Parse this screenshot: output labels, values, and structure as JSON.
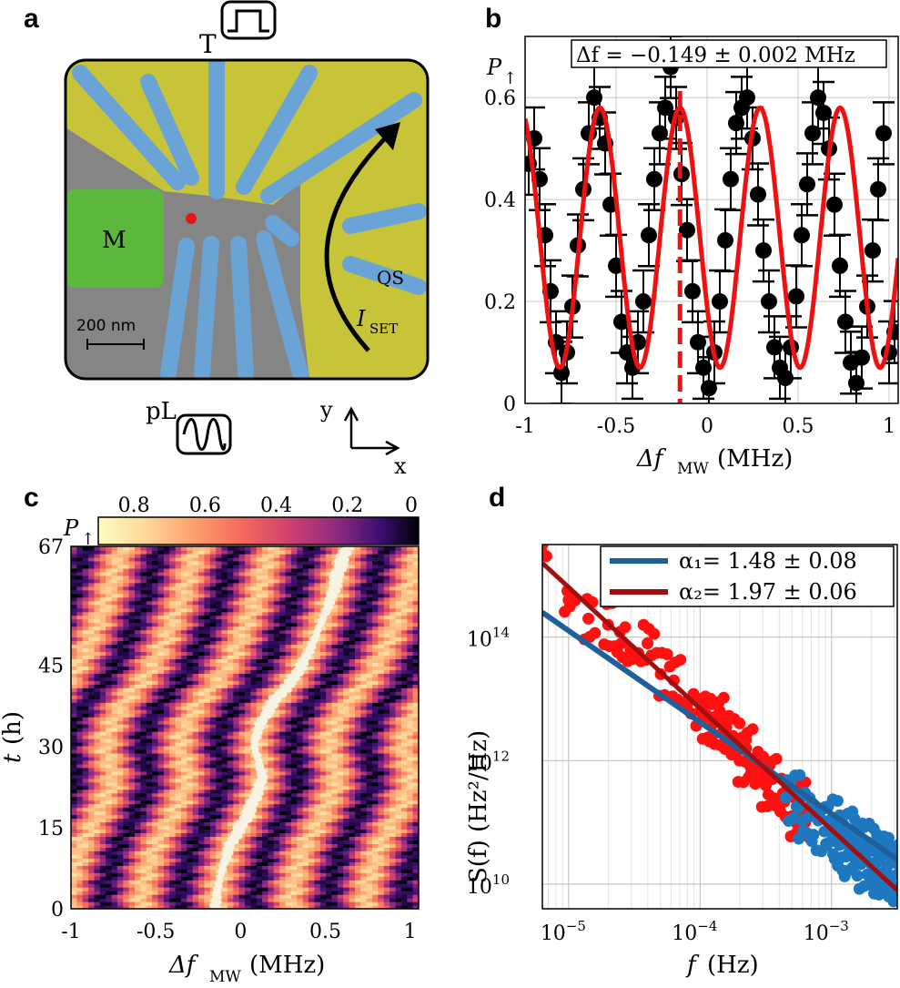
{
  "panels": {
    "a": {
      "letter": "a",
      "labels": {
        "top_gate": "T",
        "metal": "M",
        "qs": "QS",
        "i_set": "I",
        "i_set_sub": "SET",
        "pl": "pL"
      },
      "scale_bar": "200 nm",
      "axes": {
        "x": "x",
        "y": "y"
      },
      "colors": {
        "gate_blue": "#6aa3d6",
        "reservoir_yellow": "#c7c43a",
        "metal_green": "#5cb83c",
        "substrate": "#858585",
        "dot_red": "#e01818"
      }
    },
    "b": {
      "letter": "b",
      "annotation": "Δf = −0.149 ± 0.002 MHz",
      "ylabel": "P",
      "ylabel_sub": "↑",
      "xlabel": "Δf",
      "xlabel_sub": "MW",
      "xlabel_unit": "(MHz)",
      "xticks": [
        "-1",
        "-0.5",
        "0",
        "0.5",
        "1"
      ],
      "yticks": [
        "0",
        "0.2",
        "0.4",
        "0.6"
      ],
      "colors": {
        "fit": "#ee1111",
        "points": "#000000",
        "marker": "#ee1111"
      }
    },
    "c": {
      "letter": "c",
      "colorbar_label": "P",
      "colorbar_label_sub": "↑",
      "colorbar_ticks": [
        "0.8",
        "0.6",
        "0.4",
        "0.2",
        "0"
      ],
      "ylabel": "t",
      "ylabel_unit": "(h)",
      "xlabel": "Δf",
      "xlabel_sub": "MW",
      "xlabel_unit": "(MHz)",
      "xticks": [
        "-1",
        "-0.5",
        "0",
        "0.5",
        "1"
      ],
      "yticks": [
        "0",
        "15",
        "30",
        "45",
        "67"
      ]
    },
    "d": {
      "letter": "d",
      "legend": [
        {
          "label": "α₁= 1.48 ± 0.08",
          "color": "#1f5f9a"
        },
        {
          "label": "α₂= 1.97 ± 0.06",
          "color": "#a01010"
        }
      ],
      "ylabel": "S(f) (Hz²/Hz)",
      "xlabel": "f",
      "xlabel_unit": "(Hz)",
      "xticks": [
        "10",
        "10",
        "10"
      ],
      "xticks_exp": [
        "−5",
        "−4",
        "−3"
      ],
      "yticks": [
        "10",
        "10",
        "10"
      ],
      "yticks_exp": [
        "10",
        "12",
        "14"
      ],
      "colors": {
        "red_points": "#ff1111",
        "blue_points": "#1e78c0"
      }
    }
  },
  "chart_data": [
    {
      "type": "scatter",
      "panel": "b",
      "title": "",
      "xlabel": "Δf_MW (MHz)",
      "ylabel": "P↑",
      "xlim": [
        -1,
        1.05
      ],
      "ylim": [
        0,
        0.72
      ],
      "fit": {
        "model": "cosine",
        "center_offset": -0.149,
        "period": 0.44,
        "min": 0.07,
        "max": 0.58
      },
      "vline_x": -0.149,
      "x": [
        -0.98,
        -0.95,
        -0.92,
        -0.89,
        -0.86,
        -0.83,
        -0.8,
        -0.77,
        -0.74,
        -0.71,
        -0.68,
        -0.65,
        -0.62,
        -0.59,
        -0.56,
        -0.53,
        -0.5,
        -0.47,
        -0.44,
        -0.41,
        -0.38,
        -0.35,
        -0.32,
        -0.29,
        -0.26,
        -0.23,
        -0.2,
        -0.17,
        -0.14,
        -0.11,
        -0.08,
        -0.05,
        -0.02,
        0.01,
        0.04,
        0.07,
        0.1,
        0.13,
        0.16,
        0.19,
        0.22,
        0.25,
        0.28,
        0.31,
        0.34,
        0.37,
        0.4,
        0.43,
        0.46,
        0.49,
        0.52,
        0.55,
        0.58,
        0.61,
        0.64,
        0.67,
        0.7,
        0.73,
        0.76,
        0.79,
        0.82,
        0.85,
        0.88,
        0.91,
        0.94,
        0.97,
        1.0,
        1.03
      ],
      "y": [
        0.47,
        0.52,
        0.44,
        0.33,
        0.22,
        0.12,
        0.06,
        0.1,
        0.19,
        0.31,
        0.42,
        0.53,
        0.6,
        0.56,
        0.51,
        0.39,
        0.27,
        0.16,
        0.1,
        0.07,
        0.12,
        0.2,
        0.33,
        0.44,
        0.53,
        0.58,
        0.66,
        0.56,
        0.45,
        0.34,
        0.22,
        0.12,
        0.07,
        0.03,
        0.1,
        0.2,
        0.32,
        0.44,
        0.55,
        0.58,
        0.6,
        0.52,
        0.41,
        0.3,
        0.2,
        0.11,
        0.07,
        0.05,
        0.11,
        0.21,
        0.33,
        0.43,
        0.53,
        0.6,
        0.57,
        0.5,
        0.39,
        0.27,
        0.16,
        0.08,
        0.04,
        0.09,
        0.19,
        0.3,
        0.42,
        0.53,
        0.1,
        0.14
      ]
    },
    {
      "type": "heatmap",
      "panel": "c",
      "xlabel": "Δf_MW (MHz)",
      "ylabel": "t (h)",
      "xlim": [
        -1,
        1.05
      ],
      "ylim": [
        0,
        67
      ],
      "colorbar_range": [
        0,
        0.9
      ],
      "period_mhz": 0.44,
      "resonance_track": {
        "t": [
          0,
          3,
          6,
          9,
          12,
          15,
          18,
          21,
          24,
          27,
          30,
          33,
          36,
          39,
          42,
          45,
          48,
          51,
          54,
          57,
          60,
          63,
          66,
          67
        ],
        "f": [
          -0.15,
          -0.14,
          -0.12,
          -0.09,
          -0.06,
          0.0,
          0.05,
          0.09,
          0.13,
          0.11,
          0.08,
          0.1,
          0.15,
          0.21,
          0.3,
          0.36,
          0.41,
          0.45,
          0.49,
          0.53,
          0.56,
          0.58,
          0.62,
          0.62
        ]
      }
    },
    {
      "type": "scatter",
      "panel": "d",
      "xlabel": "f (Hz)",
      "ylabel": "S(f) (Hz²/Hz)",
      "xscale": "log",
      "yscale": "log",
      "xlim_log10": [
        -5.2,
        -2.5
      ],
      "ylim_log10": [
        9.6,
        15.5
      ],
      "series": [
        {
          "name": "α₁ fit",
          "slope": -1.48,
          "line_log10": [
            [
              -5.2,
              14.4
            ],
            [
              -2.5,
              10.4
            ]
          ]
        },
        {
          "name": "α₂ fit",
          "slope": -1.97,
          "line_log10": [
            [
              -5.2,
              15.2
            ],
            [
              -2.5,
              9.9
            ]
          ]
        },
        {
          "name": "low-f points",
          "x_log10": [
            -5.2,
            -5.0,
            -4.85,
            -4.7,
            -4.6,
            -4.5,
            -4.4,
            -4.3,
            -4.2,
            -4.1,
            -4.0,
            -3.95,
            -3.9,
            -3.85,
            -3.8,
            -3.75,
            -3.7,
            -3.65,
            -3.6,
            -3.55,
            -3.5,
            -3.45,
            -3.4,
            -3.35,
            -3.3,
            -3.25,
            -3.2
          ],
          "y_log10": [
            15.5,
            14.6,
            14.3,
            14.2,
            13.9,
            13.7,
            13.9,
            13.4,
            13.3,
            12.9,
            12.8,
            12.7,
            12.6,
            12.8,
            12.3,
            12.4,
            12.0,
            12.2,
            11.8,
            11.9,
            11.6,
            11.7,
            11.3,
            11.5,
            11.1,
            11.3,
            11.0
          ]
        },
        {
          "name": "high-f points",
          "x_log10": [
            -3.3,
            -3.2,
            -3.1,
            -3.0,
            -2.95,
            -2.9,
            -2.85,
            -2.8,
            -2.75,
            -2.7,
            -2.65,
            -2.6,
            -2.55,
            -2.5
          ],
          "y_log10": [
            11.4,
            11.1,
            10.9,
            11.0,
            10.6,
            10.8,
            10.5,
            10.7,
            10.3,
            10.6,
            10.2,
            10.4,
            10.1,
            10.3
          ]
        }
      ]
    }
  ]
}
